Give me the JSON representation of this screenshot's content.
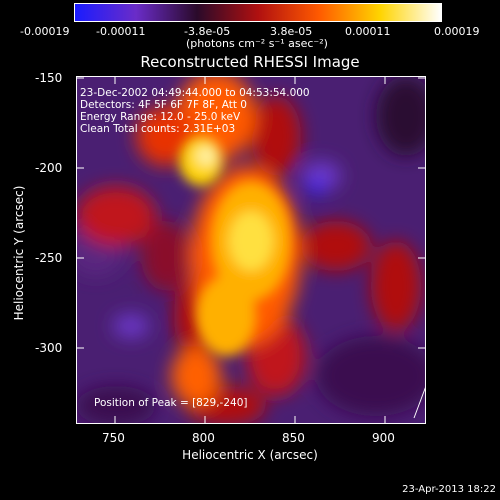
{
  "colorbar": {
    "tick_labels": [
      "-0.00019",
      "-0.00011",
      "-3.8e-05",
      "3.8e-05",
      "0.00011",
      "0.00019"
    ],
    "unit_label": "(photons cm⁻² s⁻¹ asec⁻²)",
    "colors": [
      "#1a1cff",
      "#6a2cc8",
      "#2a0a2a",
      "#b01010",
      "#ff5a00",
      "#ffd400",
      "#ffffff"
    ]
  },
  "plot": {
    "title": "Reconstructed RHESSI Image",
    "xlabel": "Heliocentric X (arcsec)",
    "ylabel": "Heliocentric Y (arcsec)",
    "x_ticks": [
      "750",
      "800",
      "850",
      "900"
    ],
    "y_ticks": [
      "-150",
      "-200",
      "-250",
      "-300"
    ],
    "xlim": [
      728,
      922
    ],
    "ylim": [
      -342,
      -146
    ],
    "info_lines": [
      "23-Dec-2002 04:49:44.000 to 04:53:54.000",
      "Detectors: 4F 5F 6F 7F 8F, Att 0",
      "Energy Range: 12.0 - 25.0 keV",
      "Clean     Total counts: 2.31E+03"
    ],
    "peak_label": "Position of Peak = [829,-240]"
  },
  "footer": {
    "date": "23-Apr-2013 18:22"
  }
}
